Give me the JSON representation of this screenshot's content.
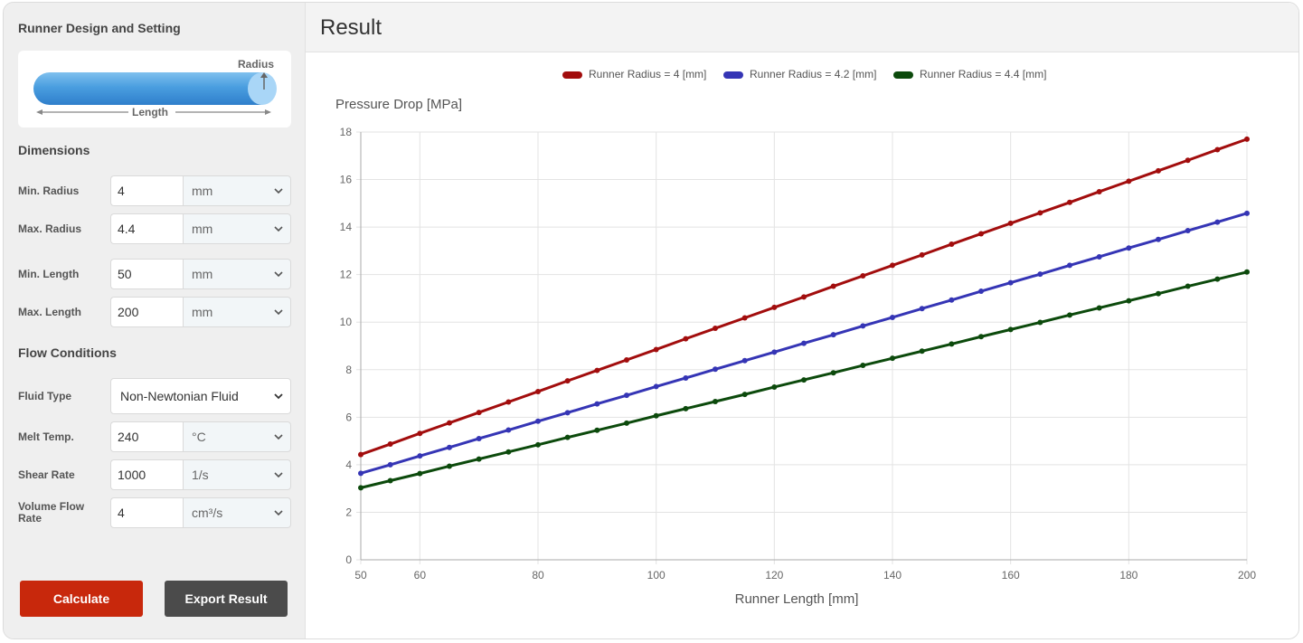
{
  "left_panel": {
    "title": "Runner Design and Setting",
    "diagram": {
      "radius_label": "Radius",
      "length_label": "Length"
    },
    "dimensions_title": "Dimensions",
    "dimensions": [
      {
        "label": "Min. Radius",
        "value": "4",
        "unit": "mm"
      },
      {
        "label": "Max. Radius",
        "value": "4.4",
        "unit": "mm"
      },
      {
        "label": "Min. Length",
        "value": "50",
        "unit": "mm"
      },
      {
        "label": "Max. Length",
        "value": "200",
        "unit": "mm"
      }
    ],
    "flow_title": "Flow Conditions",
    "fluid_type": {
      "label": "Fluid Type",
      "value": "Non-Newtonian Fluid"
    },
    "flow": [
      {
        "label": "Melt Temp.",
        "value": "240",
        "unit": "°C"
      },
      {
        "label": "Shear Rate",
        "value": "1000",
        "unit": "1/s"
      },
      {
        "label": "Volume Flow Rate",
        "value": "4",
        "unit": "cm³/s"
      }
    ],
    "calculate_label": "Calculate",
    "export_label": "Export Result"
  },
  "result": {
    "title": "Result"
  },
  "colors": {
    "accent": "#c8280c",
    "series": [
      "#a20d0d",
      "#3535b5",
      "#0c4a0c"
    ]
  },
  "chart_data": {
    "type": "line",
    "title": "",
    "ylabel": "Pressure Drop [MPa]",
    "xlabel": "Runner Length [mm]",
    "xlim": [
      50,
      200
    ],
    "ylim": [
      0,
      18
    ],
    "xticks": [
      50,
      60,
      80,
      100,
      120,
      140,
      160,
      180,
      200
    ],
    "yticks": [
      0,
      2,
      4,
      6,
      8,
      10,
      12,
      14,
      16,
      18
    ],
    "grid": true,
    "legend_position": "top",
    "x": [
      50,
      55,
      60,
      65,
      70,
      75,
      80,
      85,
      90,
      95,
      100,
      105,
      110,
      115,
      120,
      125,
      130,
      135,
      140,
      145,
      150,
      155,
      160,
      165,
      170,
      175,
      180,
      185,
      190,
      195,
      200
    ],
    "series": [
      {
        "name": "Runner Radius = 4 [mm]",
        "values": [
          4.43,
          4.87,
          5.32,
          5.76,
          6.2,
          6.64,
          7.08,
          7.53,
          7.97,
          8.41,
          8.85,
          9.3,
          9.74,
          10.18,
          10.62,
          11.06,
          11.51,
          11.95,
          12.39,
          12.83,
          13.28,
          13.72,
          14.16,
          14.6,
          15.04,
          15.49,
          15.93,
          16.37,
          16.81,
          17.26,
          17.7
        ]
      },
      {
        "name": "Runner Radius = 4.2 [mm]",
        "values": [
          3.64,
          4.0,
          4.37,
          4.73,
          5.1,
          5.46,
          5.83,
          6.19,
          6.56,
          6.92,
          7.29,
          7.65,
          8.02,
          8.38,
          8.74,
          9.11,
          9.47,
          9.84,
          10.2,
          10.57,
          10.93,
          11.3,
          11.66,
          12.02,
          12.39,
          12.75,
          13.12,
          13.48,
          13.85,
          14.21,
          14.58
        ]
      },
      {
        "name": "Runner Radius = 4.4 [mm]",
        "values": [
          3.03,
          3.33,
          3.63,
          3.94,
          4.24,
          4.54,
          4.84,
          5.15,
          5.45,
          5.75,
          6.06,
          6.36,
          6.66,
          6.96,
          7.27,
          7.57,
          7.87,
          8.18,
          8.48,
          8.78,
          9.08,
          9.39,
          9.69,
          9.99,
          10.3,
          10.6,
          10.9,
          11.2,
          11.51,
          11.81,
          12.11
        ]
      }
    ]
  }
}
